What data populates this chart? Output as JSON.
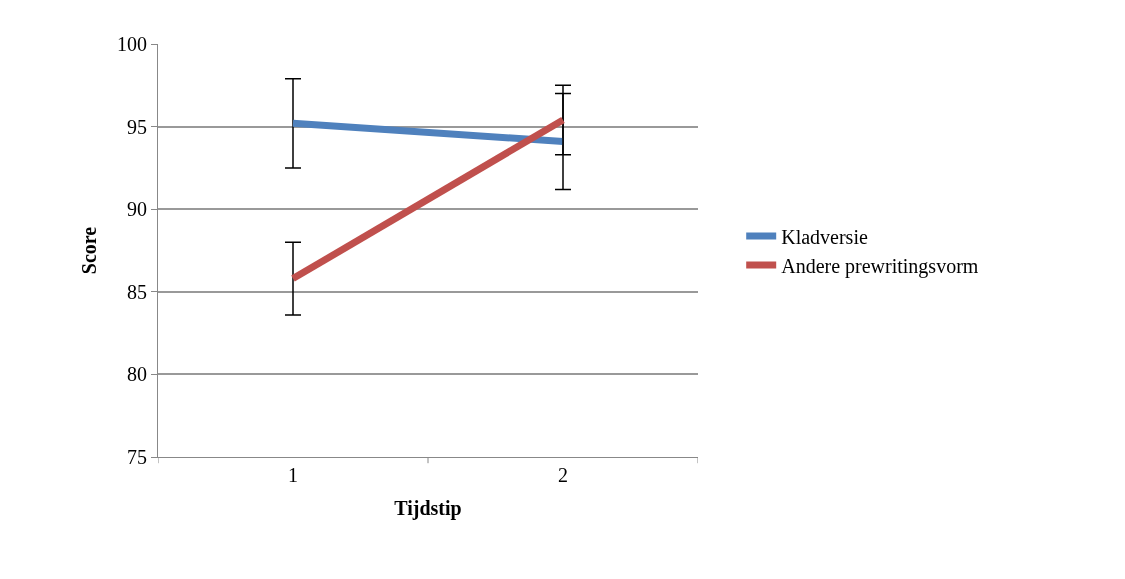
{
  "chart_data": {
    "type": "line",
    "xlabel": "Tijdstip",
    "ylabel": "Score",
    "categories": [
      "1",
      "2"
    ],
    "series": [
      {
        "name": "Kladversie",
        "color": "#4f81bd",
        "values": [
          95.2,
          94.1
        ],
        "errors": [
          2.7,
          2.9
        ]
      },
      {
        "name": "Andere prewritingsvorm",
        "color": "#c0504d",
        "values": [
          85.8,
          95.4
        ],
        "errors": [
          2.2,
          2.1
        ]
      }
    ],
    "ylim": [
      75,
      100
    ],
    "yticks": [
      75,
      80,
      85,
      90,
      95,
      100
    ],
    "grid": "y",
    "legend": "right",
    "marker": "none",
    "line_style": "solid"
  }
}
